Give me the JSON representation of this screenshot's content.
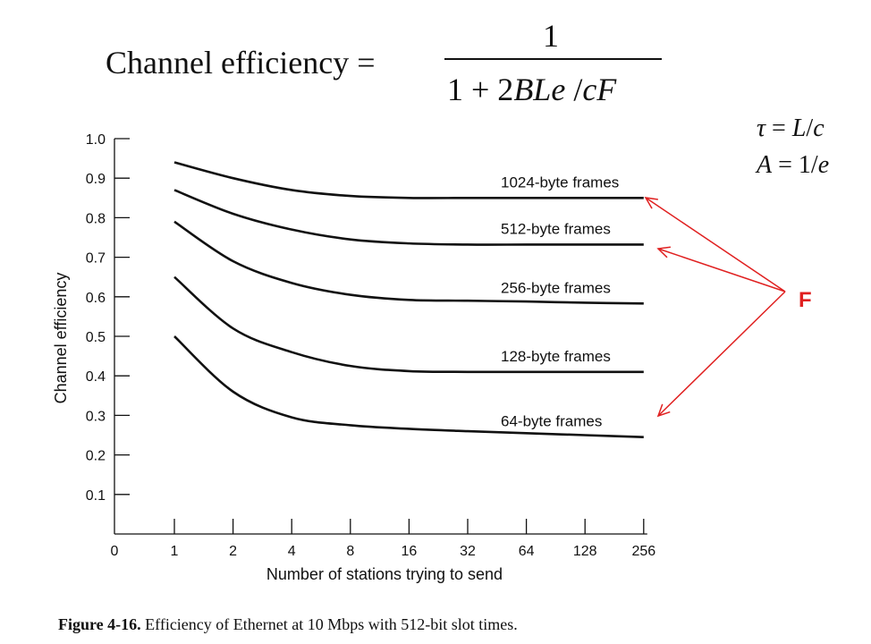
{
  "formula": {
    "lhs": "Channel efficiency =",
    "numerator": "1",
    "denominator_prefix": "1 + 2",
    "denominator_italic": "BLe",
    "denominator_slash": " /",
    "denominator_suffix": "cF"
  },
  "side_equations": {
    "tau_sym": "τ",
    "tau_eq": " = ",
    "tau_L": "L",
    "tau_slash": "/",
    "tau_c": "c",
    "A_sym": "A",
    "A_eq": " = 1/",
    "A_e": "e"
  },
  "annotation": {
    "label": "F",
    "color": "#e02020"
  },
  "caption": {
    "prefix": "Figure 4-16.",
    "text": " Efficiency of Ethernet at 10 Mbps with 512-bit slot times."
  },
  "chart_data": {
    "type": "line",
    "xlabel": "Number of stations trying to send",
    "ylabel": "Channel efficiency",
    "x_ticks": [
      "0",
      "1",
      "2",
      "4",
      "8",
      "16",
      "32",
      "64",
      "128",
      "256"
    ],
    "y_ticks": [
      "1.0",
      "0.9",
      "0.8",
      "0.7",
      "0.6",
      "0.5",
      "0.4",
      "0.3",
      "0.2",
      "0.1"
    ],
    "ylim": [
      0,
      1.0
    ],
    "x_scale": "log2",
    "series": [
      {
        "name": "1024-byte frames",
        "x": [
          1,
          2,
          4,
          8,
          16,
          32,
          64,
          128,
          256
        ],
        "values": [
          0.94,
          0.9,
          0.87,
          0.855,
          0.85,
          0.85,
          0.85,
          0.85,
          0.85
        ]
      },
      {
        "name": "512-byte frames",
        "x": [
          1,
          2,
          4,
          8,
          16,
          32,
          64,
          128,
          256
        ],
        "values": [
          0.87,
          0.81,
          0.77,
          0.745,
          0.735,
          0.732,
          0.732,
          0.732,
          0.732
        ]
      },
      {
        "name": "256-byte frames",
        "x": [
          1,
          2,
          4,
          8,
          16,
          32,
          64,
          128,
          256
        ],
        "values": [
          0.79,
          0.69,
          0.635,
          0.605,
          0.592,
          0.59,
          0.588,
          0.585,
          0.583
        ]
      },
      {
        "name": "128-byte frames",
        "x": [
          1,
          2,
          4,
          8,
          16,
          32,
          64,
          128,
          256
        ],
        "values": [
          0.65,
          0.52,
          0.46,
          0.425,
          0.412,
          0.41,
          0.41,
          0.41,
          0.41
        ]
      },
      {
        "name": "64-byte frames",
        "x": [
          1,
          2,
          4,
          8,
          16,
          32,
          64,
          128,
          256
        ],
        "values": [
          0.5,
          0.36,
          0.295,
          0.275,
          0.266,
          0.26,
          0.255,
          0.25,
          0.245
        ]
      }
    ],
    "grid": false
  }
}
